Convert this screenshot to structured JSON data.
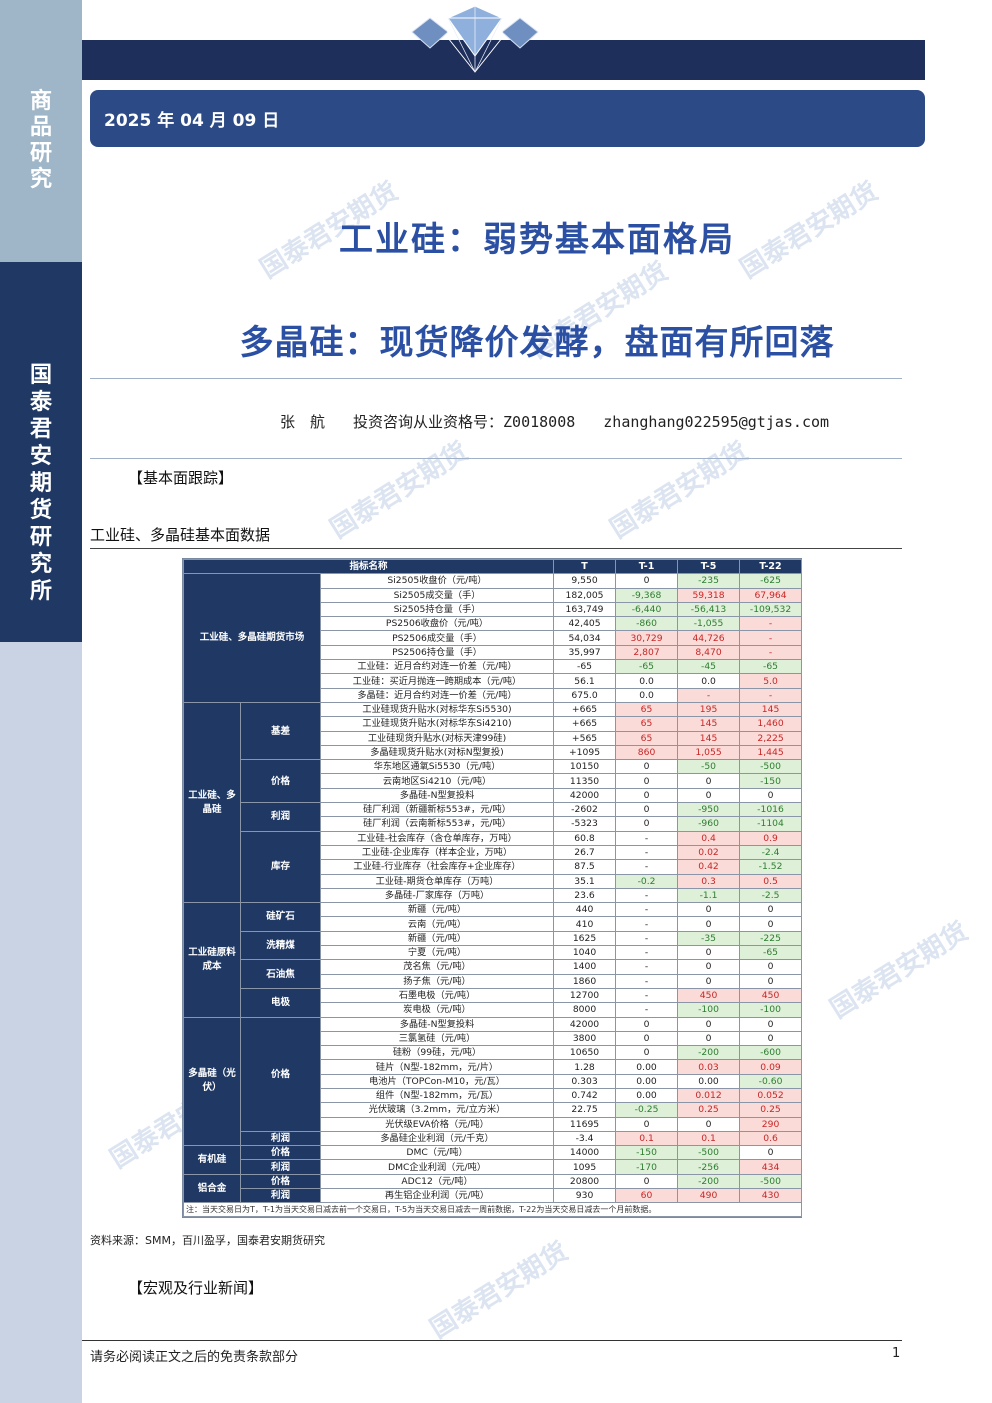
{
  "sidebar": {
    "category_chars": [
      "商",
      "品",
      "研",
      "究"
    ],
    "org_chars": [
      "国",
      "泰",
      "君",
      "安",
      "期",
      "货",
      "研",
      "究",
      "所"
    ]
  },
  "header": {
    "date": "2025 年 04 月 09 日"
  },
  "titles": {
    "main": "工业硅：弱势基本面格局",
    "sub": "多晶硅：现货降价发酵，盘面有所回落"
  },
  "author": {
    "name": "张　航",
    "license_label": "投资咨询从业资格号：",
    "license_no": "Z0018008",
    "email": "zhanghang022595@gtjas.com"
  },
  "watermark_text": "国泰君安期货",
  "sections": {
    "fundamental": "【基本面跟踪】",
    "news": "【宏观及行业新闻】"
  },
  "table": {
    "caption": "工业硅、多晶硅基本面数据",
    "headers": [
      "指标名称",
      "T",
      "T-1",
      "T-5",
      "T-22"
    ],
    "groups": {
      "futures": "工业硅、多晶硅期货市场",
      "si_poly": "工业硅、多晶硅",
      "raw_cost": "工业硅原料成本",
      "pv": "多晶硅（光伏）",
      "organic": "有机硅",
      "alloy": "铝合金"
    },
    "subs": {
      "basis": "基差",
      "price": "价格",
      "profit": "利润",
      "inventory": "库存",
      "silica": "硅矿石",
      "coal": "洗精煤",
      "coke": "石油焦",
      "electrode": "电极",
      "pv_price": "价格",
      "pv_profit": "利润",
      "org_price": "价格",
      "org_profit": "利润",
      "al_price": "价格",
      "al_profit": "利润"
    },
    "rows": [
      {
        "name": "Si2505收盘价（元/吨）",
        "t": "9,550",
        "t1": "0",
        "t5": "-235",
        "t22": "-625"
      },
      {
        "name": "Si2505成交量（手）",
        "t": "182,005",
        "t1": "-9,368",
        "t5": "59,318",
        "t22": "67,964"
      },
      {
        "name": "Si2505持仓量（手）",
        "t": "163,749",
        "t1": "-6,440",
        "t5": "-56,413",
        "t22": "-109,532"
      },
      {
        "name": "PS2506收盘价（元/吨）",
        "t": "42,405",
        "t1": "-860",
        "t5": "-1,055",
        "t22": "-"
      },
      {
        "name": "PS2506成交量（手）",
        "t": "54,034",
        "t1": "30,729",
        "t5": "44,726",
        "t22": "-"
      },
      {
        "name": "PS2506持仓量（手）",
        "t": "35,997",
        "t1": "2,807",
        "t5": "8,470",
        "t22": "-"
      },
      {
        "name": "工业硅：近月合约对连一价差（元/吨）",
        "t": "-65",
        "t1": "-65",
        "t5": "-45",
        "t22": "-65"
      },
      {
        "name": "工业硅：买近月抛连一跨期成本（元/吨）",
        "t": "56.1",
        "t1": "0.0",
        "t5": "0.0",
        "t22": "5.0"
      },
      {
        "name": "多晶硅：近月合约对连一价差（元/吨）",
        "t": "675.0",
        "t1": "0.0",
        "t5": "-",
        "t22": "-"
      },
      {
        "name": "工业硅现货升贴水(对标华东Si5530)",
        "t": "+665",
        "t1": "65",
        "t5": "195",
        "t22": "145"
      },
      {
        "name": "工业硅现货升贴水(对标华东Si4210)",
        "t": "+665",
        "t1": "65",
        "t5": "145",
        "t22": "1,460"
      },
      {
        "name": "工业硅现货升贴水(对标天津99硅)",
        "t": "+565",
        "t1": "65",
        "t5": "145",
        "t22": "2,225"
      },
      {
        "name": "多晶硅现货升贴水(对标N型复投)",
        "t": "+1095",
        "t1": "860",
        "t5": "1,055",
        "t22": "1,445"
      },
      {
        "name": "华东地区通氧Si5530（元/吨）",
        "t": "10150",
        "t1": "0",
        "t5": "-50",
        "t22": "-500"
      },
      {
        "name": "云南地区Si4210（元/吨）",
        "t": "11350",
        "t1": "0",
        "t5": "0",
        "t22": "-150"
      },
      {
        "name": "多晶硅-N型复投料",
        "t": "42000",
        "t1": "0",
        "t5": "0",
        "t22": "0"
      },
      {
        "name": "硅厂利润（新疆新标553#，元/吨）",
        "t": "-2602",
        "t1": "0",
        "t5": "-950",
        "t22": "-1016"
      },
      {
        "name": "硅厂利润（云南新标553#，元/吨）",
        "t": "-5323",
        "t1": "0",
        "t5": "-960",
        "t22": "-1104"
      },
      {
        "name": "工业硅-社会库存（含仓单库存，万吨）",
        "t": "60.8",
        "t1": "-",
        "t5": "0.4",
        "t22": "0.9"
      },
      {
        "name": "工业硅-企业库存（样本企业，万吨）",
        "t": "26.7",
        "t1": "-",
        "t5": "0.02",
        "t22": "-2.4"
      },
      {
        "name": "工业硅-行业库存（社会库存+企业库存）",
        "t": "87.5",
        "t1": "-",
        "t5": "0.42",
        "t22": "-1.52"
      },
      {
        "name": "工业硅-期货仓单库存（万吨）",
        "t": "35.1",
        "t1": "-0.2",
        "t5": "0.3",
        "t22": "0.5"
      },
      {
        "name": "多晶硅-厂家库存（万吨）",
        "t": "23.6",
        "t1": "-",
        "t5": "-1.1",
        "t22": "-2.5"
      },
      {
        "name": "新疆（元/吨）",
        "t": "440",
        "t1": "-",
        "t5": "0",
        "t22": "0"
      },
      {
        "name": "云南（元/吨）",
        "t": "410",
        "t1": "-",
        "t5": "0",
        "t22": "0"
      },
      {
        "name": "新疆（元/吨）",
        "t": "1625",
        "t1": "-",
        "t5": "-35",
        "t22": "-225"
      },
      {
        "name": "宁夏（元/吨）",
        "t": "1040",
        "t1": "-",
        "t5": "0",
        "t22": "-65"
      },
      {
        "name": "茂名焦（元/吨）",
        "t": "1400",
        "t1": "-",
        "t5": "0",
        "t22": "0"
      },
      {
        "name": "扬子焦（元/吨）",
        "t": "1860",
        "t1": "-",
        "t5": "0",
        "t22": "0"
      },
      {
        "name": "石墨电极（元/吨）",
        "t": "12700",
        "t1": "-",
        "t5": "450",
        "t22": "450"
      },
      {
        "name": "炭电极（元/吨）",
        "t": "8000",
        "t1": "-",
        "t5": "-100",
        "t22": "-100"
      },
      {
        "name": "多晶硅-N型复投料",
        "t": "42000",
        "t1": "0",
        "t5": "0",
        "t22": "0"
      },
      {
        "name": "三氯氢硅（元/吨）",
        "t": "3800",
        "t1": "0",
        "t5": "0",
        "t22": "0"
      },
      {
        "name": "硅粉（99硅，元/吨）",
        "t": "10650",
        "t1": "0",
        "t5": "-200",
        "t22": "-600"
      },
      {
        "name": "硅片（N型-182mm，元/片）",
        "t": "1.28",
        "t1": "0.00",
        "t5": "0.03",
        "t22": "0.09"
      },
      {
        "name": "电池片（TOPCon-M10，元/瓦）",
        "t": "0.303",
        "t1": "0.00",
        "t5": "0.00",
        "t22": "-0.60"
      },
      {
        "name": "组件（N型-182mm，元/瓦）",
        "t": "0.742",
        "t1": "0.00",
        "t5": "0.012",
        "t22": "0.052"
      },
      {
        "name": "光伏玻璃（3.2mm，元/立方米）",
        "t": "22.75",
        "t1": "-0.25",
        "t5": "0.25",
        "t22": "0.25"
      },
      {
        "name": "光伏级EVA价格（元/吨）",
        "t": "11695",
        "t1": "0",
        "t5": "0",
        "t22": "290"
      },
      {
        "name": "多晶硅企业利润（元/千克）",
        "t": "-3.4",
        "t1": "0.1",
        "t5": "0.1",
        "t22": "0.6"
      },
      {
        "name": "DMC（元/吨）",
        "t": "14000",
        "t1": "-150",
        "t5": "-500",
        "t22": "0"
      },
      {
        "name": "DMC企业利润（元/吨）",
        "t": "1095",
        "t1": "-170",
        "t5": "-256",
        "t22": "434"
      },
      {
        "name": "ADC12（元/吨）",
        "t": "20800",
        "t1": "0",
        "t5": "-200",
        "t22": "-500"
      },
      {
        "name": "再生铝企业利润（元/吨）",
        "t": "930",
        "t1": "60",
        "t5": "490",
        "t22": "430"
      }
    ],
    "note": "注：当天交易日为T，T-1为当天交易日减去前一个交易日，T-5为当天交易日减去一周前数据，T-22为当天交易日减去一个月前数据。"
  },
  "source": "资料来源：SMM，百川盈孚，国泰君安期货研究",
  "footer": {
    "disclaimer": "请务必阅读正文之后的免责条款部分",
    "page": "1"
  },
  "colors": {
    "navy": "#1f3864",
    "title_blue": "#2a4fa3",
    "up_red": "#fadbd8",
    "down_green": "#dff0d8"
  }
}
